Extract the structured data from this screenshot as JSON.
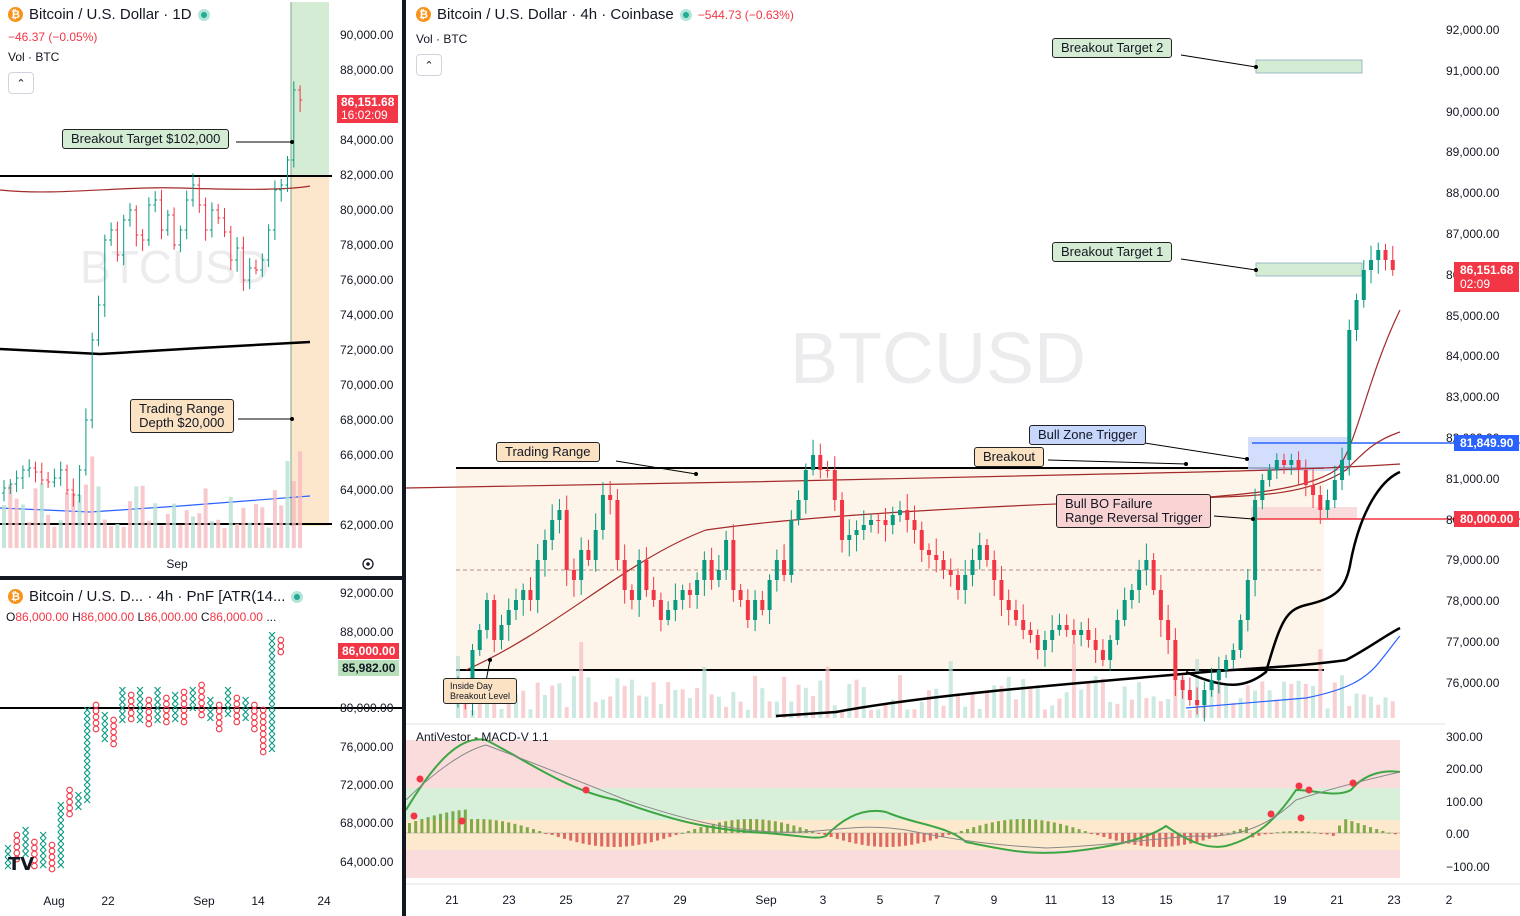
{
  "colors": {
    "up": "#089981",
    "down": "#f23645",
    "brand": "#f7931a",
    "blue": "#2962ff",
    "black": "#000000",
    "maroon": "#a32a2a"
  },
  "daily": {
    "title": "Bitcoin / U.S. Dollar · 1D",
    "change": "−46.37 (−0.05%)",
    "vol": "Vol · BTC",
    "watermark": "BTCUSD",
    "price_tag": "86,151.68",
    "countdown": "16:02:09",
    "y_ticks": [
      "90,000.00",
      "88,000.00",
      "86,000.00",
      "84,000.00",
      "82,000.00",
      "80,000.00",
      "78,000.00",
      "76,000.00",
      "74,000.00",
      "72,000.00",
      "70,000.00",
      "68,000.00",
      "66,000.00",
      "64,000.00",
      "62,000.00"
    ],
    "x_ticks": [
      "Sep"
    ],
    "notes": {
      "target": "Breakout Target $102,000",
      "range_l1": "Trading Range",
      "range_l2": "Depth $20,000"
    }
  },
  "pnf": {
    "title": "Bitcoin / U.S. D... · 4h · PnF [ATR(14...",
    "ohlc": {
      "o": "O",
      "ov": "86,000.00",
      "h": "H",
      "hv": "86,000.00",
      "l": "L",
      "lv": "86,000.00",
      "c": "C",
      "cv": "86,000.00"
    },
    "price_tag": "86,000.00",
    "price_tag2": "85,982.00",
    "y_ticks": [
      "92,000.00",
      "88,000.00",
      "80,000.00",
      "76,000.00",
      "72,000.00",
      "68,000.00",
      "64,000.00"
    ],
    "x_ticks": [
      "Aug",
      "22",
      "Sep",
      "14",
      "24"
    ],
    "logo": "TV"
  },
  "main": {
    "title": "Bitcoin / U.S. Dollar · 4h · Coinbase",
    "change": "−544.73 (−0.63%)",
    "vol": "Vol · BTC",
    "watermark": "BTCUSD",
    "price_tag": "86,151.68",
    "countdown": "02:09",
    "blue_tag": "81,849.90",
    "red_tag": "80,000.00",
    "y_ticks": [
      "92,000.00",
      "91,000.00",
      "90,000.00",
      "89,000.00",
      "88,000.00",
      "87,000.00",
      "86,000.00",
      "85,000.00",
      "84,000.00",
      "83,000.00",
      "82,000.00",
      "81,000.00",
      "80,000.00",
      "79,000.00",
      "78,000.00",
      "77,000.00",
      "76,000.00"
    ],
    "x_ticks": [
      "21",
      "23",
      "25",
      "27",
      "29",
      "Sep",
      "3",
      "5",
      "7",
      "9",
      "11",
      "13",
      "15",
      "17",
      "19",
      "21",
      "23",
      "2"
    ],
    "notes": {
      "target2": "Breakout Target 2",
      "target1": "Breakout Target 1",
      "trading_range": "Trading Range",
      "breakout": "Breakout",
      "bull_zone": "Bull Zone Trigger",
      "failure_l1": "Bull BO Failure",
      "failure_l2": "Range Reversal Trigger",
      "inside_l1": "Inside Day",
      "inside_l2": "Breakout Level"
    }
  },
  "macd": {
    "title": "AntiVestor - MACD-V 1.1",
    "y_ticks": [
      "300.00",
      "200.00",
      "100.00",
      "0.00",
      "−100.00"
    ]
  }
}
